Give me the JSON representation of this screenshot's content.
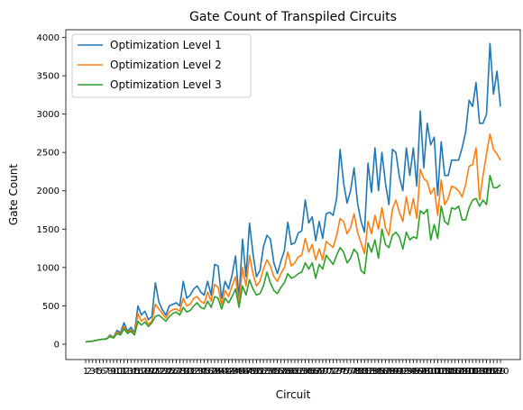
{
  "chart_data": {
    "type": "line",
    "title": "Gate Count of Transpiled Circuits",
    "xlabel": "Circuit",
    "ylabel": "Gate Count",
    "x_tick_labels": [
      "1",
      "2",
      "3",
      "4",
      "5",
      "6",
      "7",
      "8",
      "9",
      "10",
      "11",
      "12",
      "13",
      "14",
      "15",
      "16",
      "17",
      "18",
      "19",
      "20",
      "21",
      "22",
      "23",
      "24",
      "25",
      "26",
      "27",
      "28",
      "29",
      "30",
      "31",
      "32",
      "33",
      "34",
      "35",
      "36",
      "37",
      "38",
      "39",
      "40",
      "41",
      "42",
      "43",
      "44",
      "45",
      "46",
      "47",
      "48",
      "49",
      "50",
      "51",
      "52",
      "53",
      "54",
      "55",
      "56",
      "57",
      "58",
      "59",
      "60",
      "61",
      "62",
      "63",
      "64",
      "65",
      "66",
      "67",
      "68",
      "69",
      "70",
      "71",
      "72",
      "73",
      "74",
      "75",
      "76",
      "77",
      "78",
      "79",
      "80",
      "81",
      "82",
      "83",
      "84",
      "85",
      "86",
      "87",
      "88",
      "89",
      "90",
      "91",
      "92",
      "93",
      "94",
      "95",
      "96",
      "97",
      "98",
      "99",
      "100",
      "101",
      "102",
      "103",
      "104",
      "105",
      "106",
      "107",
      "108",
      "109",
      "110",
      "111",
      "112",
      "113",
      "114",
      "115",
      "116",
      "117",
      "118",
      "119",
      "120"
    ],
    "ylim": [
      -200,
      4100
    ],
    "yticks": [
      0,
      500,
      1000,
      1500,
      2000,
      2500,
      3000,
      3500,
      4000
    ],
    "grid": false,
    "legend_position": "top-left",
    "series": [
      {
        "name": "Optimization Level 1",
        "color": "#1f77b4",
        "values": [
          30,
          35,
          40,
          50,
          60,
          65,
          70,
          120,
          90,
          180,
          150,
          280,
          170,
          220,
          150,
          500,
          380,
          430,
          320,
          360,
          800,
          550,
          450,
          380,
          500,
          520,
          540,
          500,
          820,
          600,
          640,
          720,
          760,
          680,
          640,
          820,
          640,
          1040,
          1020,
          600,
          820,
          720,
          900,
          1150,
          600,
          1370,
          880,
          1580,
          1180,
          880,
          960,
          1270,
          1420,
          1370,
          1060,
          920,
          1080,
          1220,
          1590,
          1300,
          1320,
          1450,
          1480,
          1880,
          1580,
          1660,
          1350,
          1600,
          1380,
          1700,
          1720,
          1680,
          1900,
          2540,
          2100,
          1840,
          2000,
          2300,
          1840,
          1600,
          1460,
          2360,
          1980,
          2560,
          2000,
          2500,
          2100,
          1820,
          2540,
          2500,
          2180,
          2000,
          2560,
          2200,
          2560,
          2060,
          3040,
          2300,
          2880,
          2600,
          2700,
          1940,
          2640,
          2200,
          2200,
          2400,
          2400,
          2400,
          2560,
          2760,
          3180,
          3100,
          3410,
          2880,
          2880,
          3000,
          3920,
          3260,
          3560,
          3100
        ]
      },
      {
        "name": "Optimization Level 2",
        "color": "#ff7f0e",
        "values": [
          30,
          35,
          40,
          50,
          60,
          65,
          70,
          110,
          85,
          160,
          130,
          230,
          150,
          190,
          130,
          400,
          300,
          340,
          260,
          300,
          520,
          460,
          400,
          340,
          420,
          450,
          460,
          430,
          600,
          500,
          520,
          600,
          620,
          560,
          530,
          680,
          560,
          780,
          740,
          520,
          700,
          620,
          760,
          880,
          520,
          1000,
          760,
          1160,
          920,
          760,
          820,
          980,
          1100,
          1020,
          880,
          820,
          920,
          1000,
          1200,
          1020,
          1060,
          1140,
          1160,
          1380,
          1200,
          1300,
          1100,
          1240,
          1100,
          1340,
          1300,
          1260,
          1420,
          1640,
          1600,
          1440,
          1520,
          1700,
          1460,
          1320,
          1180,
          1600,
          1440,
          1680,
          1500,
          1780,
          1520,
          1420,
          1760,
          1880,
          1720,
          1600,
          1920,
          1680,
          1900,
          1640,
          2280,
          2160,
          2120,
          1960,
          2040,
          1680,
          2140,
          1820,
          1900,
          2060,
          2040,
          2000,
          1920,
          2080,
          2320,
          2340,
          2560,
          1880,
          2200,
          2480,
          2740,
          2540,
          2480,
          2400
        ]
      },
      {
        "name": "Optimization Level 3",
        "color": "#2ca02c",
        "values": [
          30,
          35,
          40,
          50,
          60,
          65,
          70,
          100,
          80,
          140,
          120,
          200,
          140,
          170,
          120,
          300,
          250,
          290,
          230,
          280,
          360,
          380,
          340,
          300,
          360,
          400,
          420,
          380,
          480,
          420,
          440,
          500,
          540,
          480,
          460,
          560,
          480,
          620,
          600,
          460,
          600,
          540,
          620,
          720,
          480,
          760,
          640,
          840,
          720,
          640,
          660,
          760,
          940,
          800,
          700,
          660,
          740,
          800,
          920,
          860,
          880,
          920,
          940,
          1060,
          980,
          1060,
          860,
          1040,
          980,
          1160,
          1100,
          1040,
          1160,
          1260,
          1200,
          1060,
          1120,
          1240,
          1180,
          960,
          920,
          1320,
          1200,
          1360,
          1120,
          1500,
          1300,
          1260,
          1420,
          1460,
          1400,
          1240,
          1460,
          1360,
          1400,
          1380,
          1740,
          1700,
          1760,
          1360,
          1560,
          1380,
          1800,
          1600,
          1560,
          1780,
          1760,
          1800,
          1620,
          1620,
          1780,
          1880,
          1900,
          1800,
          1880,
          1820,
          2200,
          2040,
          2040,
          2080
        ]
      }
    ]
  }
}
